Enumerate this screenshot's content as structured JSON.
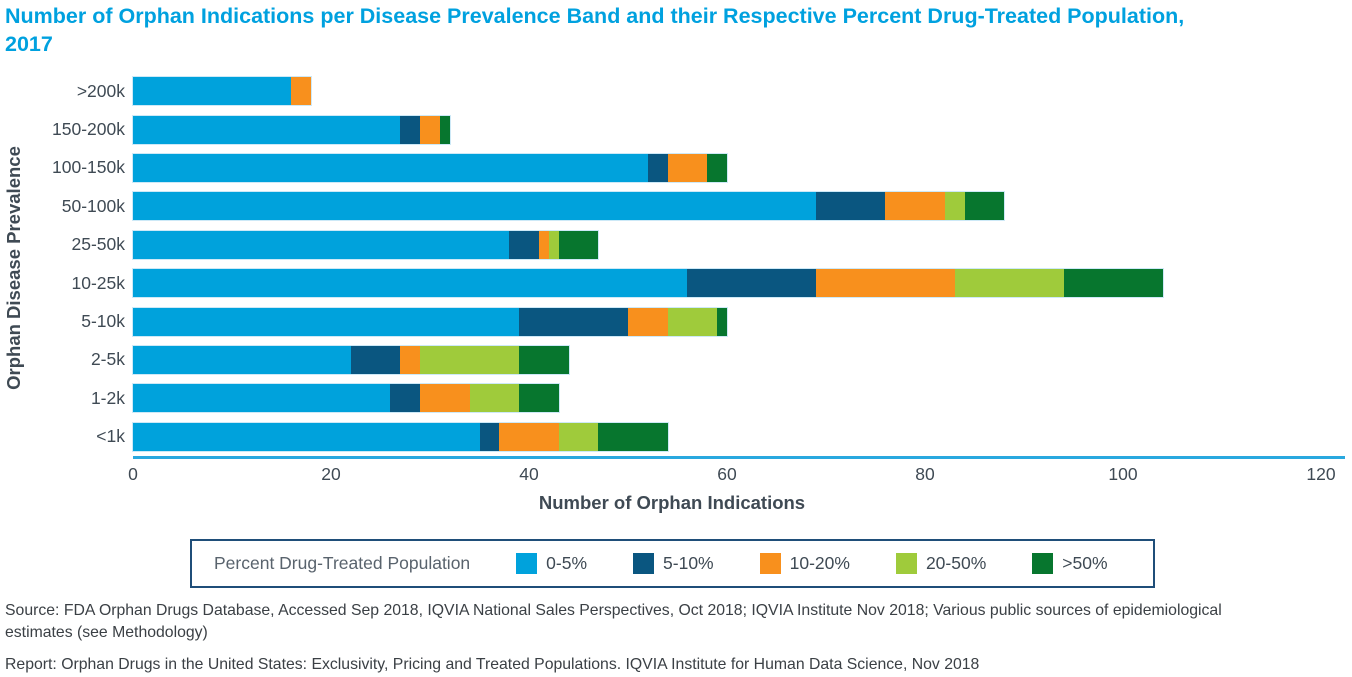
{
  "title": "Number of Orphan Indications per Disease Prevalence Band and their Respective Percent Drug-Treated Population, 2017",
  "chart_data": {
    "type": "bar",
    "orientation": "horizontal",
    "stacked": true,
    "title": "Number of Orphan Indications per Disease Prevalence Band and their Respective Percent Drug-Treated Population, 2017",
    "xlabel": "Number of Orphan Indications",
    "ylabel": "Orphan Disease Prevalence",
    "xlim": [
      0,
      120
    ],
    "xticks": [
      0,
      20,
      40,
      60,
      80,
      100,
      120
    ],
    "grid": false,
    "legend_title": "Percent Drug-Treated Population",
    "legend_position": "bottom",
    "categories": [
      ">200k",
      "150-200k",
      "100-150k",
      "50-100k",
      "25-50k",
      "10-25k",
      "5-10k",
      "2-5k",
      "1-2k",
      "<1k"
    ],
    "series": [
      {
        "name": "0-5%",
        "color": "#00A2DC",
        "values": [
          16,
          27,
          52,
          69,
          38,
          56,
          39,
          22,
          26,
          35
        ]
      },
      {
        "name": "5-10%",
        "color": "#0A5680",
        "values": [
          0,
          2,
          2,
          7,
          3,
          13,
          11,
          5,
          3,
          2
        ]
      },
      {
        "name": "10-20%",
        "color": "#F8901D",
        "values": [
          2,
          2,
          4,
          6,
          1,
          14,
          4,
          2,
          5,
          6
        ]
      },
      {
        "name": "20-50%",
        "color": "#9FCB3B",
        "values": [
          0,
          0,
          0,
          2,
          1,
          11,
          5,
          10,
          5,
          4
        ]
      },
      {
        "name": ">50%",
        "color": "#07762E",
        "values": [
          0,
          1,
          2,
          4,
          4,
          10,
          1,
          5,
          4,
          7
        ]
      }
    ],
    "totals": [
      18,
      32,
      60,
      88,
      47,
      104,
      60,
      44,
      43,
      54
    ]
  },
  "colors": {
    "title_text": "#00A1DF",
    "axis_text": "#3F4A54",
    "axis_line": "#29A8DF",
    "legend_border": "#1F4E79"
  },
  "footer": {
    "source": "Source: FDA Orphan Drugs Database, Accessed Sep 2018, IQVIA National Sales Perspectives, Oct 2018; IQVIA Institute Nov 2018; Various public sources of epidemiological estimates (see Methodology)",
    "report": "Report: Orphan Drugs in the United States: Exclusivity, Pricing and Treated Populations. IQVIA Institute for Human Data Science, Nov 2018"
  }
}
